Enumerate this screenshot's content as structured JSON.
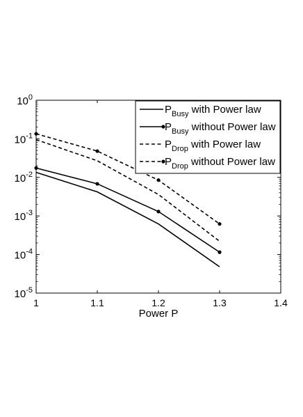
{
  "chart_data": {
    "type": "line",
    "xlabel": "Power P",
    "ylabel": "",
    "title": "",
    "x_scale": "linear",
    "y_scale": "log",
    "xlim": [
      1,
      1.4
    ],
    "ylim": [
      1e-05,
      1
    ],
    "x_ticks": [
      1,
      1.1,
      1.2,
      1.3,
      1.4
    ],
    "x_tick_labels": [
      "1",
      "1.1",
      "1.2",
      "1.3",
      "1.4"
    ],
    "y_ticks": [
      1e-05,
      0.0001,
      0.001,
      0.01,
      0.1,
      1
    ],
    "y_tick_labels": [
      {
        "base": "10",
        "exp": "-5"
      },
      {
        "base": "10",
        "exp": "-4"
      },
      {
        "base": "10",
        "exp": "-3"
      },
      {
        "base": "10",
        "exp": "-2"
      },
      {
        "base": "10",
        "exp": "-1"
      },
      {
        "base": "10",
        "exp": "0"
      }
    ],
    "grid": false,
    "legend_position": "top-right",
    "x": [
      1,
      1.1,
      1.2,
      1.3
    ],
    "series": [
      {
        "name_main": "P",
        "name_sub": "Busy",
        "name_rest": " with Power law",
        "style": "solid",
        "marker": "none",
        "values": [
          0.0135,
          0.0042,
          0.00062,
          4.8e-05
        ]
      },
      {
        "name_main": "P",
        "name_sub": "Busy",
        "name_rest": " without Power law",
        "style": "solid",
        "marker": "dot",
        "values": [
          0.0175,
          0.0068,
          0.0013,
          0.000115
        ]
      },
      {
        "name_main": "P",
        "name_sub": "Drop",
        "name_rest": " with Power law",
        "style": "dashed",
        "marker": "none",
        "values": [
          0.095,
          0.027,
          0.0036,
          0.00022
        ]
      },
      {
        "name_main": "P",
        "name_sub": "Drop",
        "name_rest": " without Power law",
        "style": "dashed",
        "marker": "dot",
        "values": [
          0.135,
          0.048,
          0.0085,
          0.00062
        ]
      }
    ],
    "colors": {
      "line": "#000000",
      "background": "#ffffff"
    }
  }
}
